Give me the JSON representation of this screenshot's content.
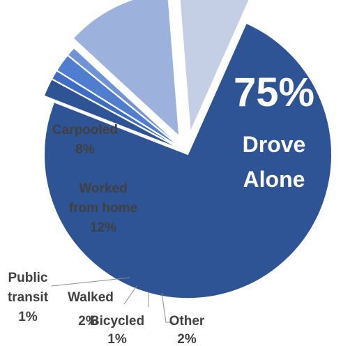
{
  "chart_data": {
    "type": "pie",
    "exploded": true,
    "slices": [
      {
        "name": "Drove Alone",
        "value": 75,
        "pct_label": "75%",
        "lines": [
          "Drove",
          "Alone"
        ],
        "color": "#2e5495",
        "text_color": "#ffffff"
      },
      {
        "name": "Other",
        "value": 2,
        "pct_label": "2%",
        "lines": [
          "Other"
        ],
        "color": "#2e5495",
        "text_color": "#404040"
      },
      {
        "name": "Bicycled",
        "value": 1,
        "pct_label": "1%",
        "lines": [
          "Bicycled"
        ],
        "color": "#3d6ec4",
        "text_color": "#404040"
      },
      {
        "name": "Walked",
        "value": 2,
        "pct_label": "2%",
        "lines": [
          "Walked"
        ],
        "color": "#4f7ed0",
        "text_color": "#404040"
      },
      {
        "name": "Public transit",
        "value": 1,
        "pct_label": "1%",
        "lines": [
          "Public",
          "transit"
        ],
        "color": "#6f93d6",
        "text_color": "#404040"
      },
      {
        "name": "Worked from home",
        "value": 12,
        "pct_label": "12%",
        "lines": [
          "Worked",
          "from home"
        ],
        "color": "#9cb1db",
        "text_color": "#404040"
      },
      {
        "name": "Carpooled",
        "value": 8,
        "pct_label": "8%",
        "lines": [
          "Carpooled"
        ],
        "color": "#c4cfe6",
        "text_color": "#404040"
      }
    ]
  }
}
